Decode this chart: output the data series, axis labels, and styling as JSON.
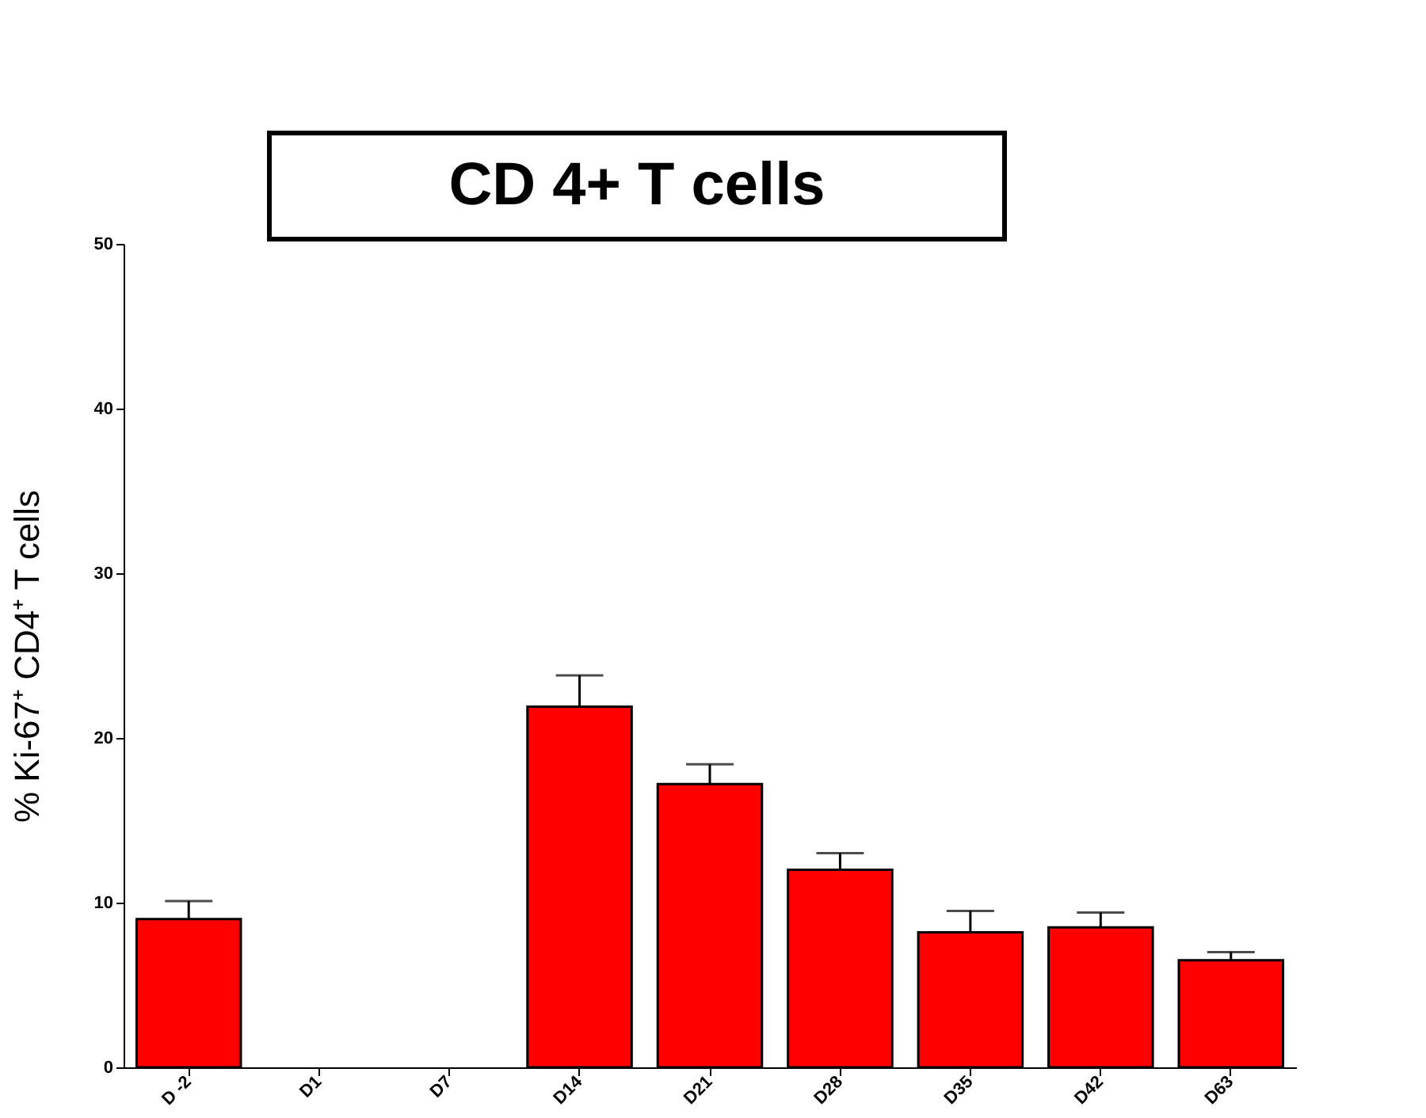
{
  "chart_data": {
    "type": "bar",
    "title": "CD 4+ T cells",
    "ylabel": "% Ki-67⁺ CD4⁺ T cells",
    "categories": [
      "D -2",
      "D1",
      "D7",
      "D14",
      "D21",
      "D28",
      "D35",
      "D42",
      "D63"
    ],
    "values": [
      9.0,
      null,
      null,
      21.9,
      17.2,
      12.0,
      8.2,
      8.5,
      6.5
    ],
    "errors": [
      [
        9.0,
        10.1
      ],
      null,
      null,
      [
        21.9,
        23.8
      ],
      [
        17.2,
        18.4
      ],
      [
        12.0,
        13.0
      ],
      [
        8.2,
        9.5
      ],
      [
        8.5,
        9.4
      ],
      [
        6.5,
        7.0
      ]
    ],
    "color": "#ff0000",
    "ylim": [
      0,
      50
    ],
    "yticks": [
      0,
      10,
      20,
      30,
      40,
      50
    ],
    "grid": false
  }
}
